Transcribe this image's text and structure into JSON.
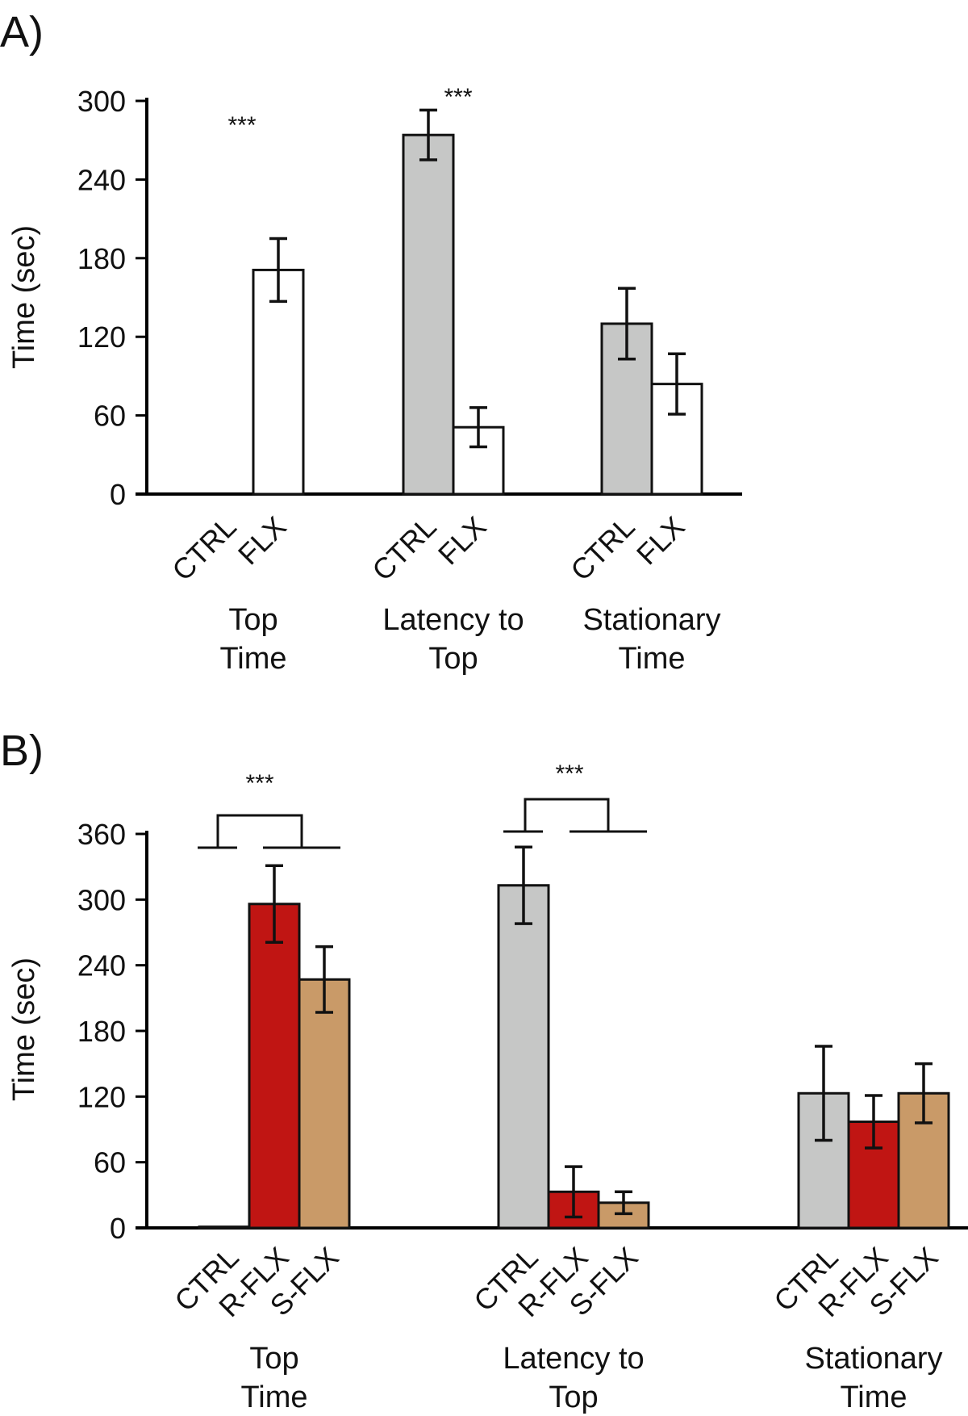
{
  "chart_data": [
    {
      "panel_label": "A)",
      "type": "bar",
      "ylabel": "Time (sec)",
      "ylim": [
        0,
        300
      ],
      "yticks": [
        0,
        60,
        120,
        180,
        240,
        300
      ],
      "group_labels": [
        [
          "Top",
          "Time"
        ],
        [
          "Latency to",
          "Top"
        ],
        [
          "Stationary",
          "Time"
        ]
      ],
      "bar_labels": [
        "CTRL",
        "FLX"
      ],
      "colors": [
        "#c6c7c6",
        "#ffffff"
      ],
      "series": [
        {
          "name": "CTRL",
          "values": [
            0,
            274,
            130
          ],
          "errors": [
            0,
            19,
            27
          ]
        },
        {
          "name": "FLX",
          "values": [
            171,
            51,
            84
          ],
          "errors": [
            24,
            15,
            23
          ]
        }
      ],
      "significance": [
        {
          "group": 0,
          "text": "***"
        },
        {
          "group": 1,
          "text": "***"
        }
      ]
    },
    {
      "panel_label": "B)",
      "type": "bar",
      "ylabel": "Time (sec)",
      "ylim": [
        0,
        360
      ],
      "yticks": [
        0,
        60,
        120,
        180,
        240,
        300,
        360
      ],
      "group_labels": [
        [
          "Top",
          "Time"
        ],
        [
          "Latency to",
          "Top"
        ],
        [
          "Stationary",
          "Time"
        ]
      ],
      "bar_labels": [
        "CTRL",
        "R-FLX",
        "S-FLX"
      ],
      "colors": [
        "#c6c7c6",
        "#c01513",
        "#c99a68"
      ],
      "series": [
        {
          "name": "CTRL",
          "values": [
            1,
            313,
            123
          ],
          "errors": [
            0,
            35,
            43
          ]
        },
        {
          "name": "R-FLX",
          "values": [
            296,
            33,
            97
          ],
          "errors": [
            35,
            23,
            24
          ]
        },
        {
          "name": "S-FLX",
          "values": [
            227,
            23,
            123
          ],
          "errors": [
            30,
            10,
            27
          ]
        }
      ],
      "significance": [
        {
          "group": 0,
          "text": "***"
        },
        {
          "group": 1,
          "text": "***"
        }
      ]
    }
  ]
}
